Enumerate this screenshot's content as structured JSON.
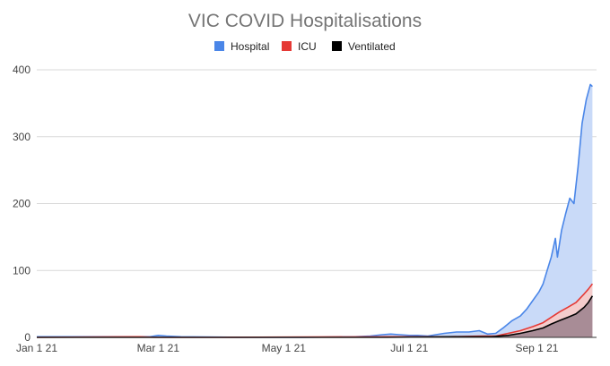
{
  "chart_data": {
    "type": "area",
    "title": "VIC COVID Hospitalisations",
    "xlabel": "",
    "ylabel": "",
    "ylim": [
      0,
      400
    ],
    "xlim": [
      "2021-01-01",
      "2021-09-30"
    ],
    "y_ticks": [
      0,
      100,
      200,
      300,
      400
    ],
    "x_ticks": [
      {
        "date": "2021-01-01",
        "label": "Jan 1 21"
      },
      {
        "date": "2021-03-01",
        "label": "Mar 1 21"
      },
      {
        "date": "2021-05-01",
        "label": "May 1 21"
      },
      {
        "date": "2021-07-01",
        "label": "Jul 1 21"
      },
      {
        "date": "2021-09-01",
        "label": "Sep 1 21"
      }
    ],
    "grid": true,
    "legend_position": "top",
    "series": [
      {
        "name": "Hospital",
        "color": "#4a86e8",
        "fill": "#c9daf8",
        "points": [
          [
            "2021-01-01",
            1
          ],
          [
            "2021-01-20",
            1
          ],
          [
            "2021-02-10",
            1
          ],
          [
            "2021-02-25",
            1
          ],
          [
            "2021-03-01",
            3
          ],
          [
            "2021-03-05",
            2
          ],
          [
            "2021-03-12",
            1
          ],
          [
            "2021-04-10",
            0
          ],
          [
            "2021-05-10",
            0
          ],
          [
            "2021-06-05",
            1
          ],
          [
            "2021-06-12",
            2
          ],
          [
            "2021-06-18",
            4
          ],
          [
            "2021-06-22",
            5
          ],
          [
            "2021-06-26",
            4
          ],
          [
            "2021-07-01",
            3
          ],
          [
            "2021-07-05",
            3
          ],
          [
            "2021-07-10",
            2
          ],
          [
            "2021-07-18",
            6
          ],
          [
            "2021-07-24",
            8
          ],
          [
            "2021-07-30",
            8
          ],
          [
            "2021-08-04",
            10
          ],
          [
            "2021-08-08",
            5
          ],
          [
            "2021-08-12",
            6
          ],
          [
            "2021-08-16",
            15
          ],
          [
            "2021-08-20",
            25
          ],
          [
            "2021-08-24",
            32
          ],
          [
            "2021-08-27",
            42
          ],
          [
            "2021-08-30",
            55
          ],
          [
            "2021-09-02",
            68
          ],
          [
            "2021-09-04",
            80
          ],
          [
            "2021-09-06",
            100
          ],
          [
            "2021-09-08",
            120
          ],
          [
            "2021-09-10",
            148
          ],
          [
            "2021-09-11",
            120
          ],
          [
            "2021-09-13",
            160
          ],
          [
            "2021-09-15",
            185
          ],
          [
            "2021-09-17",
            208
          ],
          [
            "2021-09-19",
            200
          ],
          [
            "2021-09-21",
            255
          ],
          [
            "2021-09-23",
            320
          ],
          [
            "2021-09-25",
            355
          ],
          [
            "2021-09-27",
            378
          ],
          [
            "2021-09-28",
            375
          ]
        ]
      },
      {
        "name": "ICU",
        "color": "#e53935",
        "fill": "#f4cccc",
        "points": [
          [
            "2021-01-01",
            0
          ],
          [
            "2021-02-20",
            1
          ],
          [
            "2021-02-28",
            0
          ],
          [
            "2021-04-01",
            0
          ],
          [
            "2021-06-20",
            1
          ],
          [
            "2021-07-20",
            1
          ],
          [
            "2021-08-06",
            2
          ],
          [
            "2021-08-12",
            2
          ],
          [
            "2021-08-18",
            6
          ],
          [
            "2021-08-24",
            10
          ],
          [
            "2021-08-30",
            16
          ],
          [
            "2021-09-04",
            22
          ],
          [
            "2021-09-08",
            30
          ],
          [
            "2021-09-12",
            38
          ],
          [
            "2021-09-16",
            45
          ],
          [
            "2021-09-20",
            52
          ],
          [
            "2021-09-24",
            65
          ],
          [
            "2021-09-26",
            72
          ],
          [
            "2021-09-28",
            80
          ]
        ]
      },
      {
        "name": "Ventilated",
        "color": "#000000",
        "fill": "#a88c96",
        "points": [
          [
            "2021-01-01",
            0
          ],
          [
            "2021-06-20",
            0
          ],
          [
            "2021-07-20",
            1
          ],
          [
            "2021-08-10",
            1
          ],
          [
            "2021-08-18",
            3
          ],
          [
            "2021-08-24",
            6
          ],
          [
            "2021-08-30",
            10
          ],
          [
            "2021-09-04",
            14
          ],
          [
            "2021-09-08",
            20
          ],
          [
            "2021-09-12",
            25
          ],
          [
            "2021-09-16",
            30
          ],
          [
            "2021-09-20",
            35
          ],
          [
            "2021-09-24",
            45
          ],
          [
            "2021-09-26",
            52
          ],
          [
            "2021-09-28",
            62
          ]
        ]
      }
    ]
  }
}
